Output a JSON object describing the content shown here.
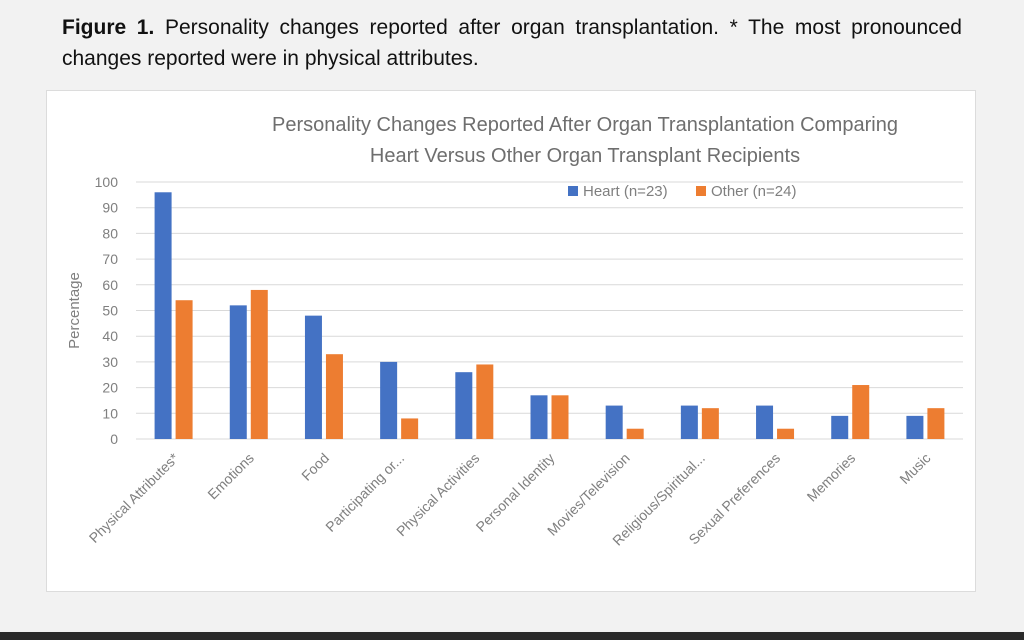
{
  "caption": {
    "label": "Figure 1.",
    "text": "Personality changes reported after organ transplantation. * The most pronounced changes reported were in physical attributes."
  },
  "colors": {
    "heart": "#4472c4",
    "other": "#ed7d31",
    "grid": "#d9d9d9",
    "text": "#7f7f7f"
  },
  "chart_data": {
    "type": "bar",
    "title_lines": [
      "Personality Changes Reported After Organ Transplantation Comparing",
      "Heart Versus Other Organ Transplant Recipients"
    ],
    "xlabel": "",
    "ylabel": "Percentage",
    "ylim": [
      0,
      100
    ],
    "yticks": [
      0,
      10,
      20,
      30,
      40,
      50,
      60,
      70,
      80,
      90,
      100
    ],
    "grid": true,
    "legend_position": "top-right",
    "categories": [
      "Physical Attributes*",
      "Emotions",
      "Food",
      "Participating or...",
      "Physical Activities",
      "Personal Identity",
      "Movies/Television",
      "Religious/Spiritual...",
      "Sexual Preferences",
      "Memories",
      "Music"
    ],
    "series": [
      {
        "name": "Heart (n=23)",
        "values": [
          96,
          52,
          48,
          30,
          26,
          17,
          13,
          13,
          13,
          9,
          9
        ]
      },
      {
        "name": "Other (n=24)",
        "values": [
          54,
          58,
          33,
          8,
          29,
          17,
          4,
          12,
          4,
          21,
          12
        ]
      }
    ]
  }
}
